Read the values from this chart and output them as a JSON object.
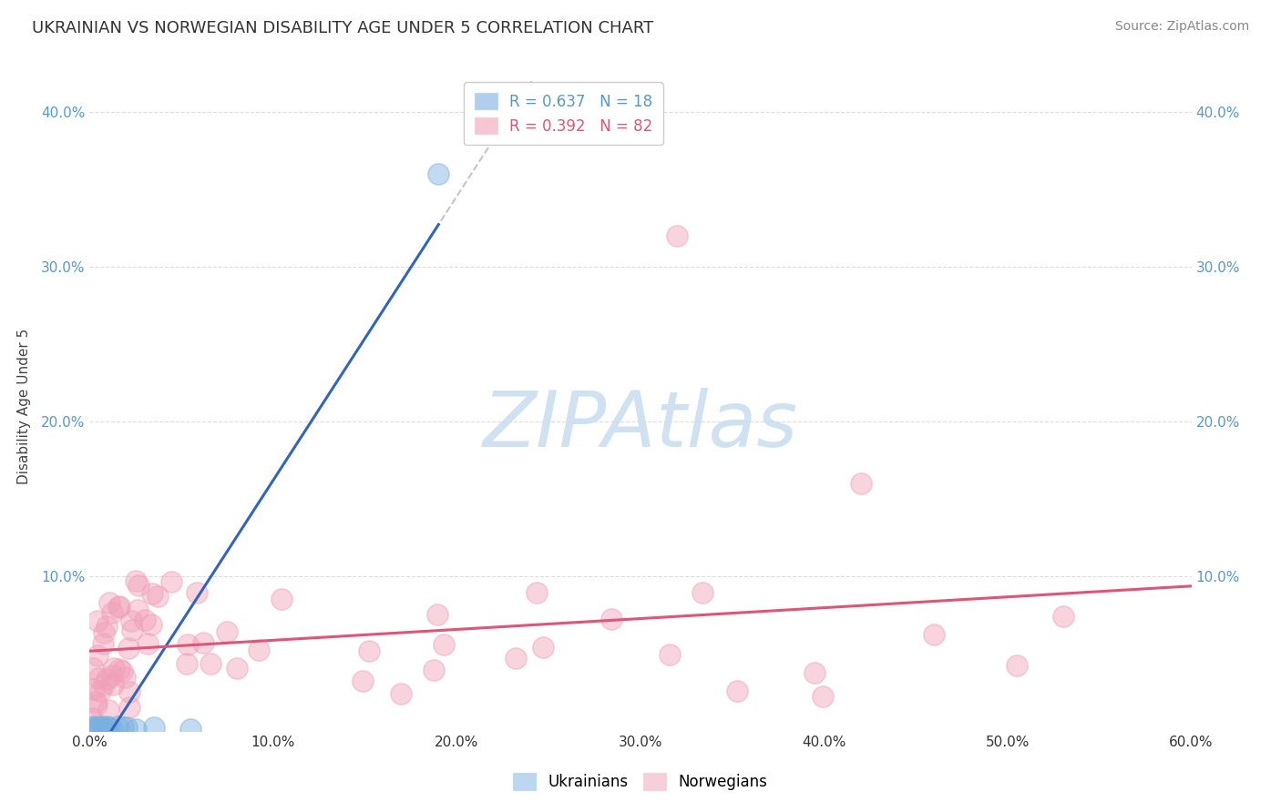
{
  "title": "UKRAINIAN VS NORWEGIAN DISABILITY AGE UNDER 5 CORRELATION CHART",
  "source": "Source: ZipAtlas.com",
  "ylabel": "Disability Age Under 5",
  "xlabel": "",
  "xlim": [
    0.0,
    0.6
  ],
  "ylim": [
    0.0,
    0.42
  ],
  "xticks": [
    0.0,
    0.1,
    0.2,
    0.3,
    0.4,
    0.5,
    0.6
  ],
  "xtick_labels": [
    "0.0%",
    "10.0%",
    "20.0%",
    "30.0%",
    "40.0%",
    "50.0%",
    "60.0%"
  ],
  "yticks": [
    0.0,
    0.1,
    0.2,
    0.3,
    0.4
  ],
  "ytick_labels_left": [
    "",
    "10.0%",
    "20.0%",
    "30.0%",
    "40.0%"
  ],
  "ytick_labels_right": [
    "",
    "10.0%",
    "20.0%",
    "30.0%",
    "40.0%"
  ],
  "legend_items": [
    {
      "label": "R = 0.637   N = 18",
      "color": "#a8c8f0"
    },
    {
      "label": "R = 0.392   N = 82",
      "color": "#f0a8c0"
    }
  ],
  "ukrainian_color": "#7ab0e0",
  "norwegian_color": "#f0a0b8",
  "ukrainian_line_color": "#3366bb",
  "norwegian_line_color": "#dd5577",
  "watermark": "ZIPAtlas",
  "watermark_color": "#c8ddf0",
  "background_color": "#ffffff",
  "grid_color": "#dddddd",
  "title_fontsize": 13,
  "axis_label_fontsize": 11,
  "tick_fontsize": 11,
  "legend_fontsize": 12,
  "source_fontsize": 10
}
